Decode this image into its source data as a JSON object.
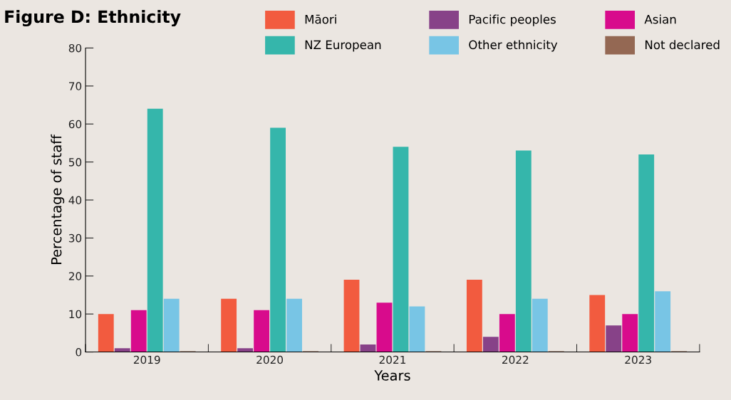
{
  "chart_data": {
    "type": "bar",
    "title": "Figure D: Ethnicity",
    "xlabel": "Years",
    "ylabel": "Percentage of staff",
    "categories": [
      "2019",
      "2020",
      "2021",
      "2022",
      "2023"
    ],
    "series": [
      {
        "name": "Māori",
        "color": "#f25b3f",
        "values": [
          10,
          14,
          19,
          19,
          15
        ]
      },
      {
        "name": "Pacific peoples",
        "color": "#874288",
        "values": [
          1,
          1,
          2,
          4,
          7
        ]
      },
      {
        "name": "Asian",
        "color": "#d80b8c",
        "values": [
          11,
          11,
          13,
          10,
          10
        ]
      },
      {
        "name": "NZ European",
        "color": "#35b6ab",
        "values": [
          64,
          59,
          54,
          53,
          52
        ]
      },
      {
        "name": "Other ethnicity",
        "color": "#78c5e5",
        "values": [
          14,
          14,
          12,
          14,
          16
        ]
      },
      {
        "name": "Not declared",
        "color": "#946853",
        "values": [
          0.2,
          0.2,
          0.2,
          0.2,
          0.2
        ]
      }
    ],
    "ylim": [
      0,
      80
    ],
    "yticks": [
      0,
      10,
      20,
      30,
      40,
      50,
      60,
      70,
      80
    ],
    "grid": false,
    "legend": "top right"
  }
}
